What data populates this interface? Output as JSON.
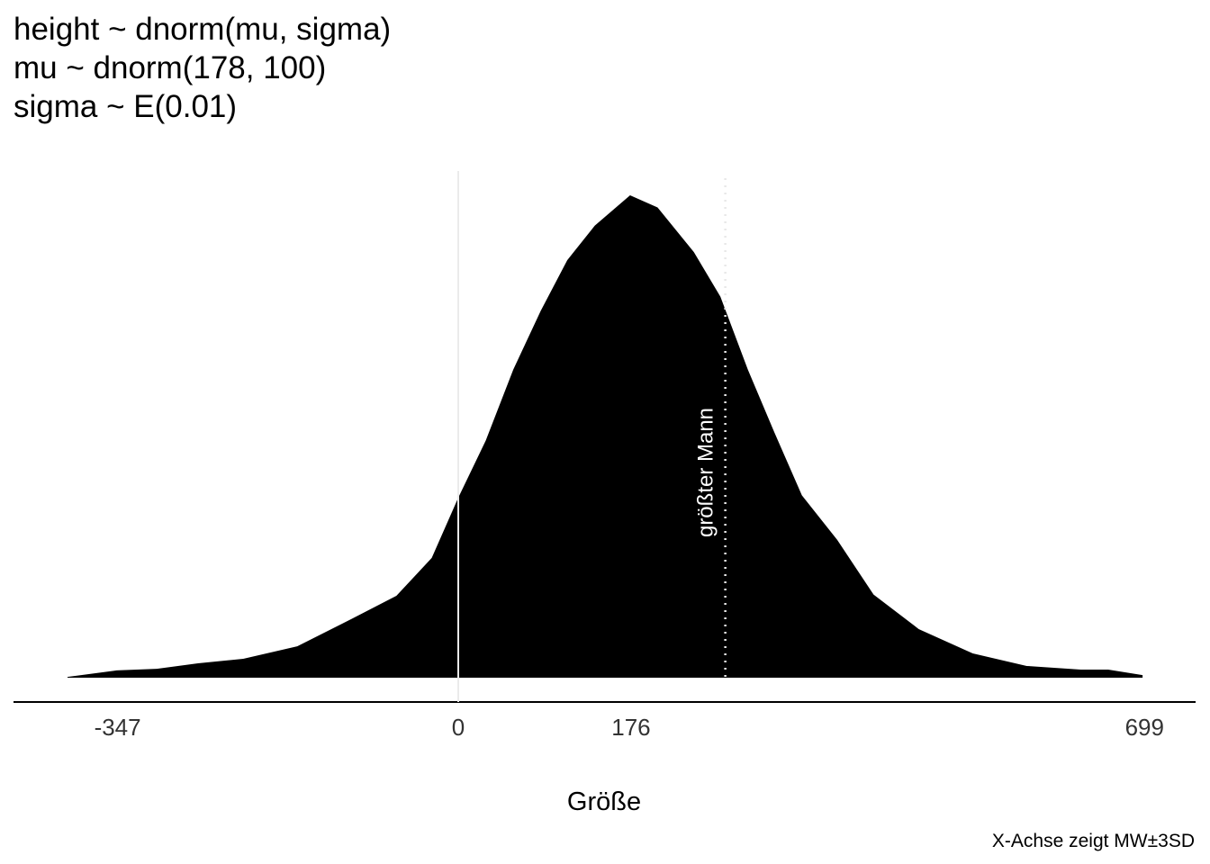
{
  "chart_data": {
    "type": "area",
    "title_lines": [
      "height ~ dnorm(mu, sigma)",
      "mu ~ dnorm(178, 100)",
      "sigma ~ E(0.01)"
    ],
    "x_label": "Größe",
    "caption": "X-Achse zeigt MW±3SD",
    "x": [
      -398,
      -348,
      -307,
      -265,
      -219,
      -164,
      -109,
      -63,
      -27,
      0,
      28,
      56,
      84,
      111,
      139,
      175,
      203,
      240,
      267,
      295,
      322,
      350,
      386,
      423,
      469,
      524,
      579,
      634,
      662,
      697
    ],
    "values": [
      4e-06,
      3.6e-05,
      4.4e-05,
      7.1e-05,
      9.3e-05,
      0.000155,
      0.000289,
      0.000404,
      0.000591,
      0.000888,
      0.00117,
      0.00152,
      0.00181,
      0.00206,
      0.00223,
      0.00238,
      0.00232,
      0.0021,
      0.00188,
      0.00152,
      0.00121,
      0.0009,
      0.00068,
      0.00041,
      0.00024,
      0.00012,
      5.8e-05,
      4e-05,
      4e-05,
      1.3e-05
    ],
    "color": "#000000",
    "xlim": [
      -453,
      751
    ],
    "xticks": [
      -347,
      0,
      176,
      699
    ],
    "ylim": [
      0,
      0.0025
    ],
    "vlines": [
      0
    ],
    "annotation": {
      "x": 272,
      "text": "größter Mann"
    }
  }
}
